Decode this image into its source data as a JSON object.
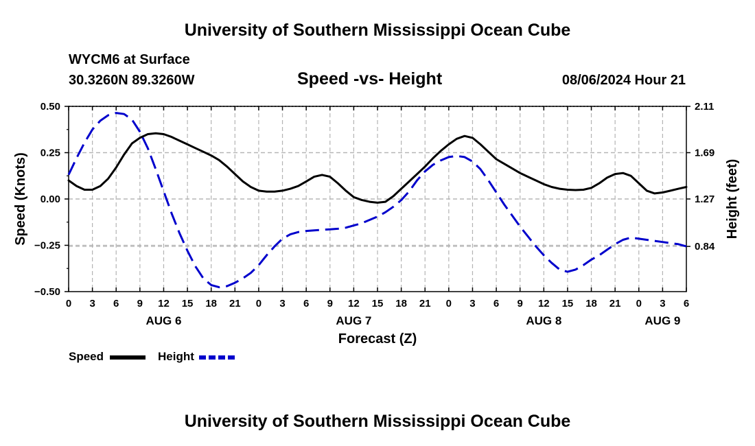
{
  "page": {
    "title": "University of Southern Mississippi Ocean Cube",
    "footer_title": "University of Southern Mississippi Ocean Cube",
    "station": "WYCM6 at Surface",
    "coords": "30.3260N  89.3260W",
    "timestamp": "08/06/2024 Hour 21"
  },
  "chart_data": {
    "type": "line",
    "title": "Speed -vs- Height",
    "xlabel": "Forecast (Z)",
    "ylabel": "Speed (Knots)",
    "y2label": "Height (feet)",
    "x_unit": "forecast hours from 00Z Aug 6",
    "xlim": [
      0,
      78
    ],
    "ylim": [
      -0.5,
      0.5
    ],
    "y2lim": [
      0.43,
      2.11
    ],
    "x_tick_labels": [
      "0",
      "3",
      "6",
      "9",
      "12",
      "15",
      "18",
      "21",
      "0",
      "3",
      "6",
      "9",
      "12",
      "15",
      "18",
      "21",
      "0",
      "3",
      "6",
      "9",
      "12",
      "15",
      "18",
      "21",
      "0",
      "3",
      "6"
    ],
    "day_labels": [
      {
        "label": "AUG 6",
        "x": 12
      },
      {
        "label": "AUG 7",
        "x": 36
      },
      {
        "label": "AUG 8",
        "x": 60
      },
      {
        "label": "AUG 9",
        "x": 75
      }
    ],
    "y_tick_labels": [
      "0.50",
      "0.25",
      "0.00",
      "−0.25",
      "−0.50"
    ],
    "y_ticks": [
      0.5,
      0.25,
      0.0,
      -0.25,
      -0.5
    ],
    "y2_tick_labels": [
      "2.11",
      "1.69",
      "1.27",
      "0.84"
    ],
    "y2_ticks": [
      2.11,
      1.69,
      1.27,
      0.84
    ],
    "grid": true,
    "series": [
      {
        "name": "Speed",
        "color": "#000000",
        "axis": "left",
        "style": "solid",
        "x": [
          0,
          1,
          2,
          3,
          4,
          5,
          6,
          7,
          8,
          9,
          10,
          11,
          12,
          13,
          14,
          15,
          16,
          17,
          18,
          19,
          20,
          21,
          22,
          23,
          24,
          25,
          26,
          27,
          28,
          29,
          30,
          31,
          32,
          33,
          34,
          35,
          36,
          37,
          38,
          39,
          40,
          41,
          42,
          43,
          44,
          45,
          46,
          47,
          48,
          49,
          50,
          51,
          52,
          53,
          54,
          55,
          56,
          57,
          58,
          59,
          60,
          61,
          62,
          63,
          64,
          65,
          66,
          67,
          68,
          69,
          70,
          71,
          72,
          73,
          74,
          75,
          76,
          77,
          78
        ],
        "values": [
          0.1,
          0.07,
          0.05,
          0.05,
          0.07,
          0.11,
          0.17,
          0.24,
          0.3,
          0.33,
          0.35,
          0.355,
          0.35,
          0.335,
          0.315,
          0.295,
          0.275,
          0.255,
          0.235,
          0.21,
          0.175,
          0.135,
          0.095,
          0.065,
          0.045,
          0.04,
          0.04,
          0.045,
          0.055,
          0.07,
          0.095,
          0.12,
          0.13,
          0.12,
          0.085,
          0.045,
          0.01,
          -0.005,
          -0.015,
          -0.02,
          -0.015,
          0.015,
          0.055,
          0.095,
          0.135,
          0.175,
          0.22,
          0.26,
          0.295,
          0.325,
          0.34,
          0.33,
          0.295,
          0.255,
          0.215,
          0.19,
          0.165,
          0.14,
          0.12,
          0.1,
          0.08,
          0.065,
          0.055,
          0.05,
          0.048,
          0.05,
          0.06,
          0.085,
          0.115,
          0.135,
          0.14,
          0.125,
          0.085,
          0.045,
          0.03,
          0.035,
          0.045,
          0.055,
          0.065
        ]
      },
      {
        "name": "Height",
        "color": "#0000cc",
        "axis": "right",
        "style": "dashed",
        "x": [
          0,
          1,
          2,
          3,
          4,
          5,
          6,
          7,
          8,
          9,
          10,
          11,
          12,
          13,
          14,
          15,
          16,
          17,
          18,
          19,
          20,
          21,
          22,
          23,
          24,
          25,
          26,
          27,
          28,
          29,
          30,
          31,
          32,
          33,
          34,
          35,
          36,
          37,
          38,
          39,
          40,
          41,
          42,
          43,
          44,
          45,
          46,
          47,
          48,
          49,
          50,
          51,
          52,
          53,
          54,
          55,
          56,
          57,
          58,
          59,
          60,
          61,
          62,
          63,
          64,
          65,
          66,
          67,
          68,
          69,
          70,
          71,
          72,
          73,
          74,
          75,
          76,
          77,
          78
        ],
        "values": [
          1.49,
          1.64,
          1.78,
          1.9,
          1.98,
          2.03,
          2.05,
          2.04,
          1.99,
          1.88,
          1.73,
          1.54,
          1.34,
          1.14,
          0.96,
          0.8,
          0.66,
          0.55,
          0.49,
          0.47,
          0.48,
          0.51,
          0.55,
          0.6,
          0.67,
          0.76,
          0.84,
          0.91,
          0.95,
          0.97,
          0.98,
          0.985,
          0.99,
          0.995,
          1.0,
          1.01,
          1.03,
          1.05,
          1.08,
          1.11,
          1.15,
          1.2,
          1.26,
          1.34,
          1.44,
          1.52,
          1.58,
          1.62,
          1.65,
          1.66,
          1.65,
          1.61,
          1.54,
          1.44,
          1.33,
          1.22,
          1.12,
          1.02,
          0.93,
          0.84,
          0.76,
          0.69,
          0.63,
          0.61,
          0.63,
          0.67,
          0.72,
          0.76,
          0.81,
          0.86,
          0.9,
          0.92,
          0.91,
          0.9,
          0.89,
          0.88,
          0.87,
          0.86,
          0.84
        ]
      }
    ],
    "legend": [
      {
        "label": "Speed",
        "color": "#000000",
        "style": "solid"
      },
      {
        "label": "Height",
        "color": "#0000cc",
        "style": "dashed"
      }
    ],
    "legend_position": "bottom-left"
  }
}
